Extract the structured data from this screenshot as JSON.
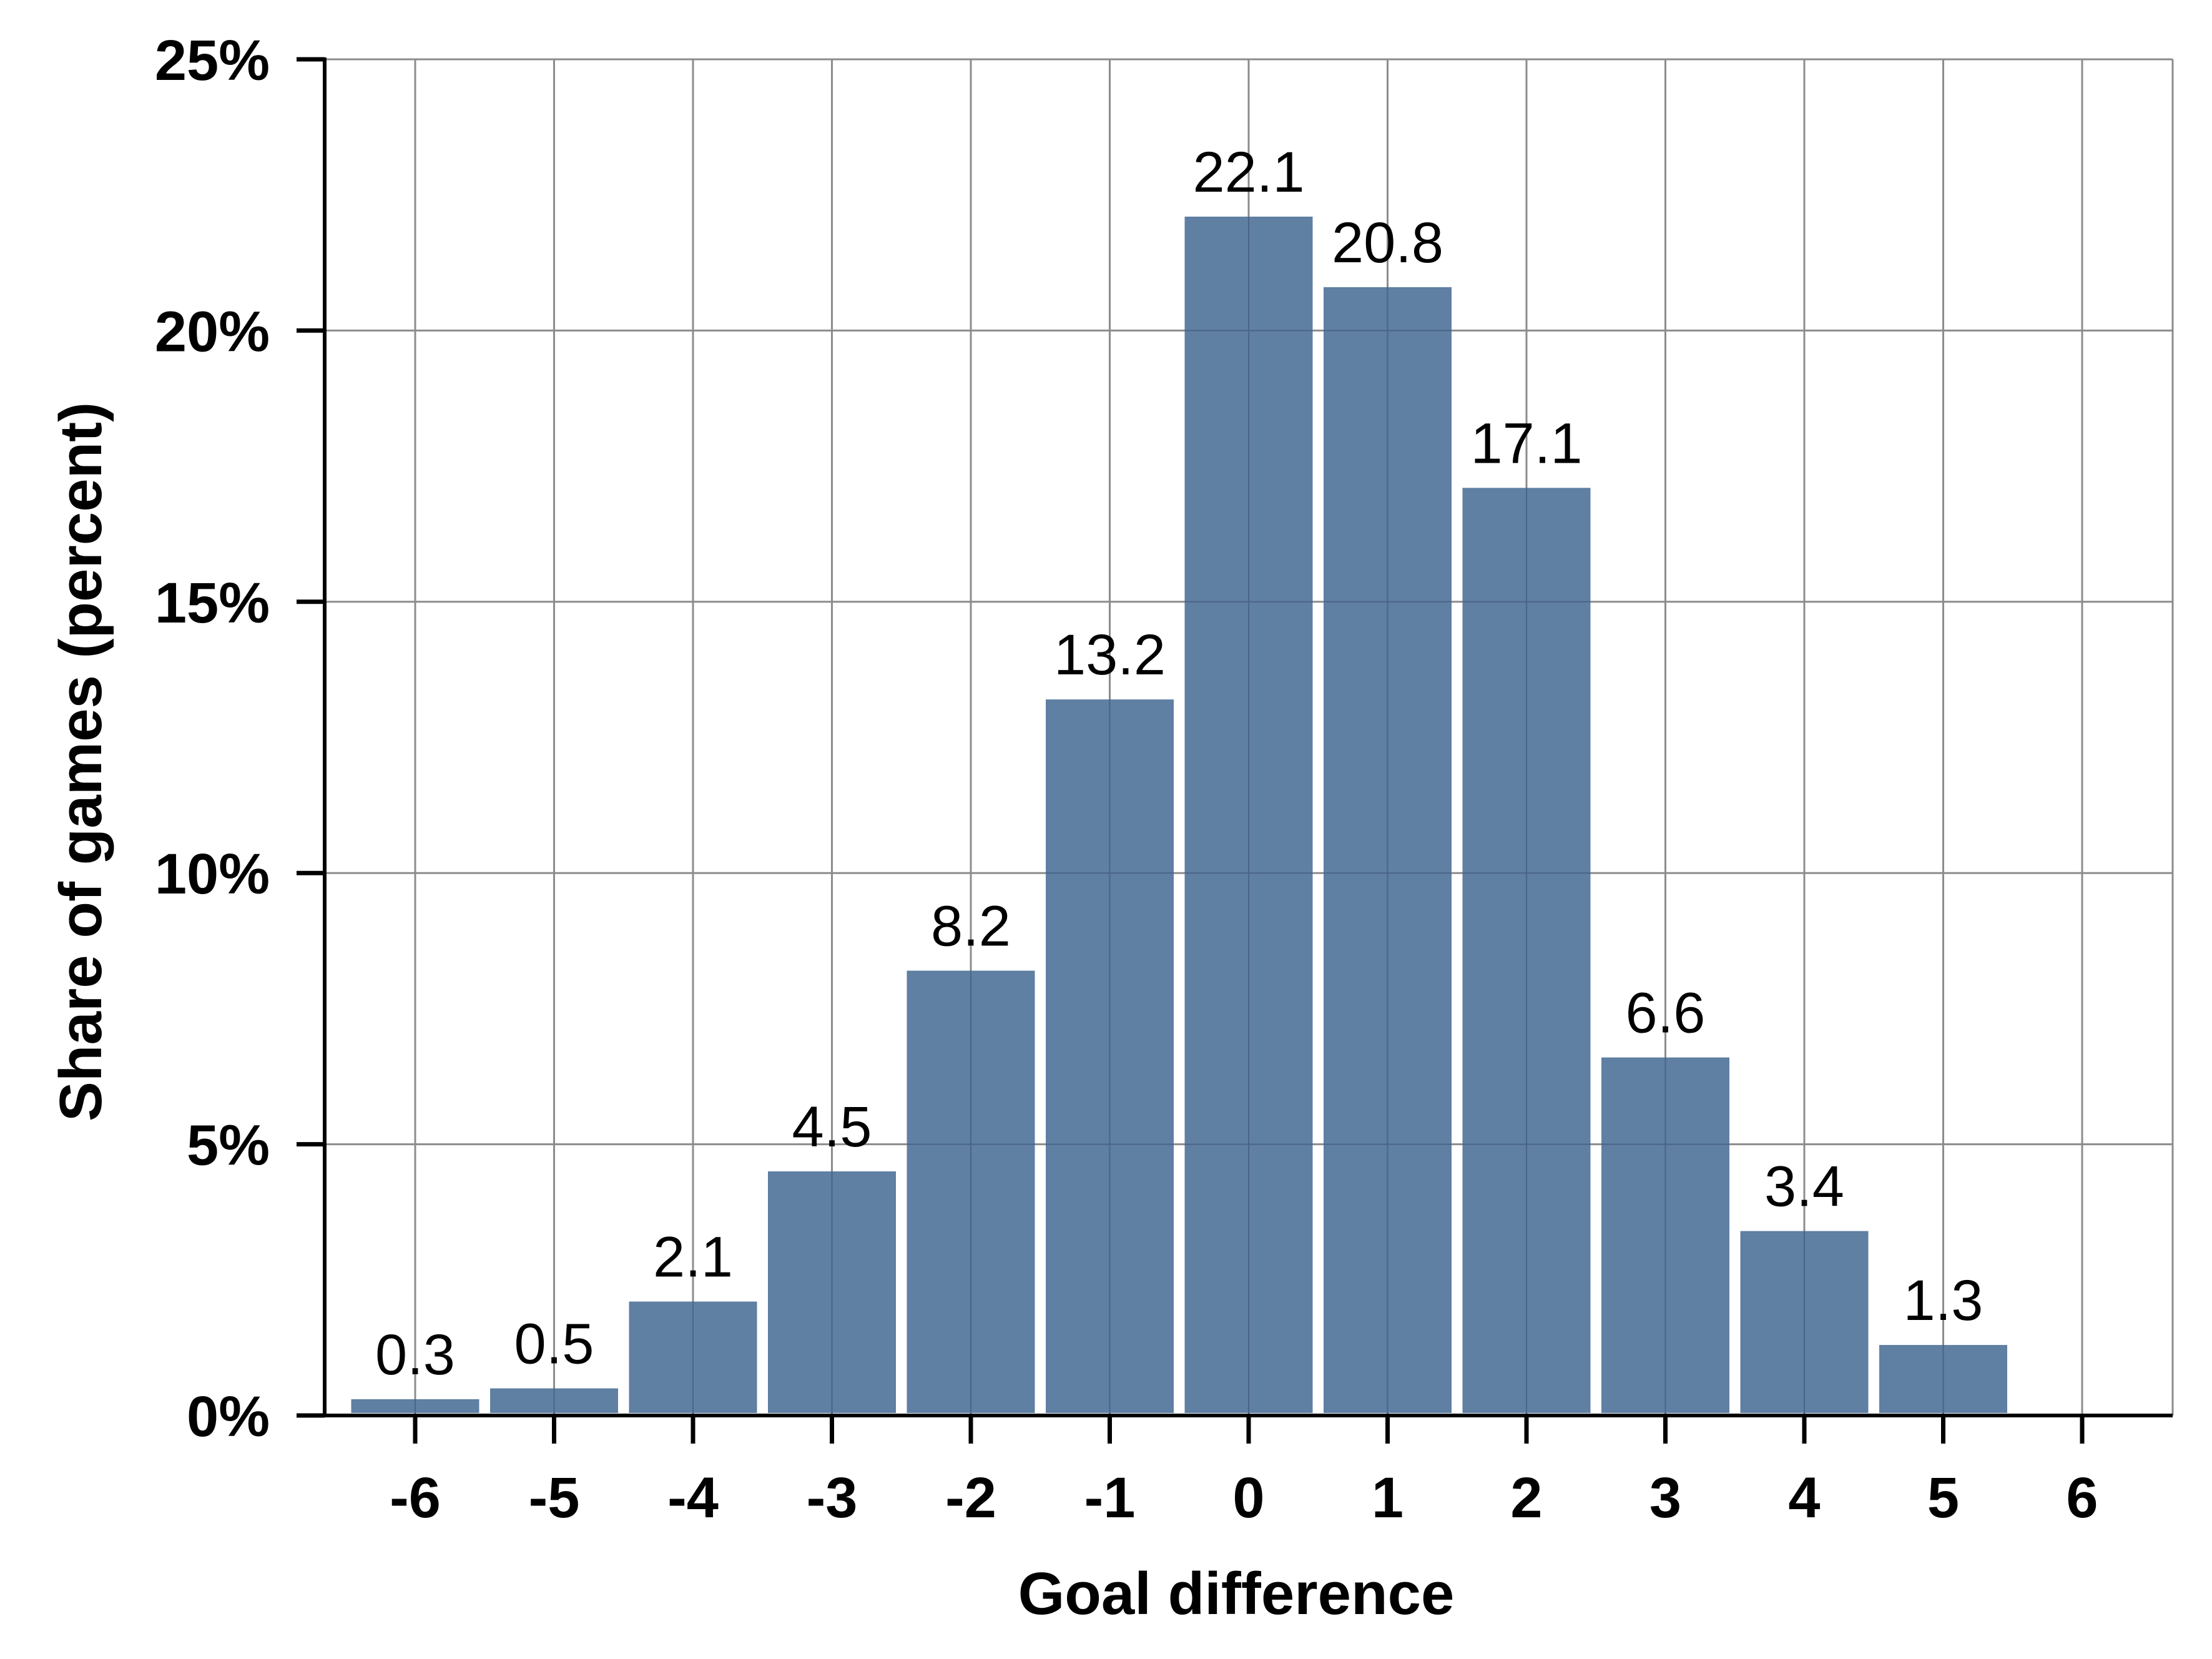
{
  "chart_data": {
    "type": "bar",
    "categories": [
      -6,
      -5,
      -4,
      -3,
      -2,
      -1,
      0,
      1,
      2,
      3,
      4,
      5,
      6
    ],
    "values": [
      0.3,
      0.5,
      2.1,
      4.5,
      8.2,
      13.2,
      22.1,
      20.8,
      17.1,
      6.6,
      3.4,
      1.3,
      null
    ],
    "data_labels": [
      "0.3",
      "0.5",
      "2.1",
      "4.5",
      "8.2",
      "13.2",
      "22.1",
      "20.8",
      "17.1",
      "6.6",
      "3.4",
      "1.3",
      ""
    ],
    "xlabel": "Goal difference",
    "ylabel": "Share of games (percent)",
    "ylim": [
      0,
      25
    ],
    "yticks": [
      0,
      5,
      10,
      15,
      20,
      25
    ],
    "ytick_labels": [
      "0%",
      "5%",
      "10%",
      "15%",
      "20%",
      "25%"
    ],
    "xtick_labels": [
      "-6",
      "-5",
      "-4",
      "-3",
      "-2",
      "-1",
      "0",
      "1",
      "2",
      "3",
      "4",
      "5",
      "6"
    ],
    "grid": true,
    "bar_color": "#5f7fa3"
  }
}
